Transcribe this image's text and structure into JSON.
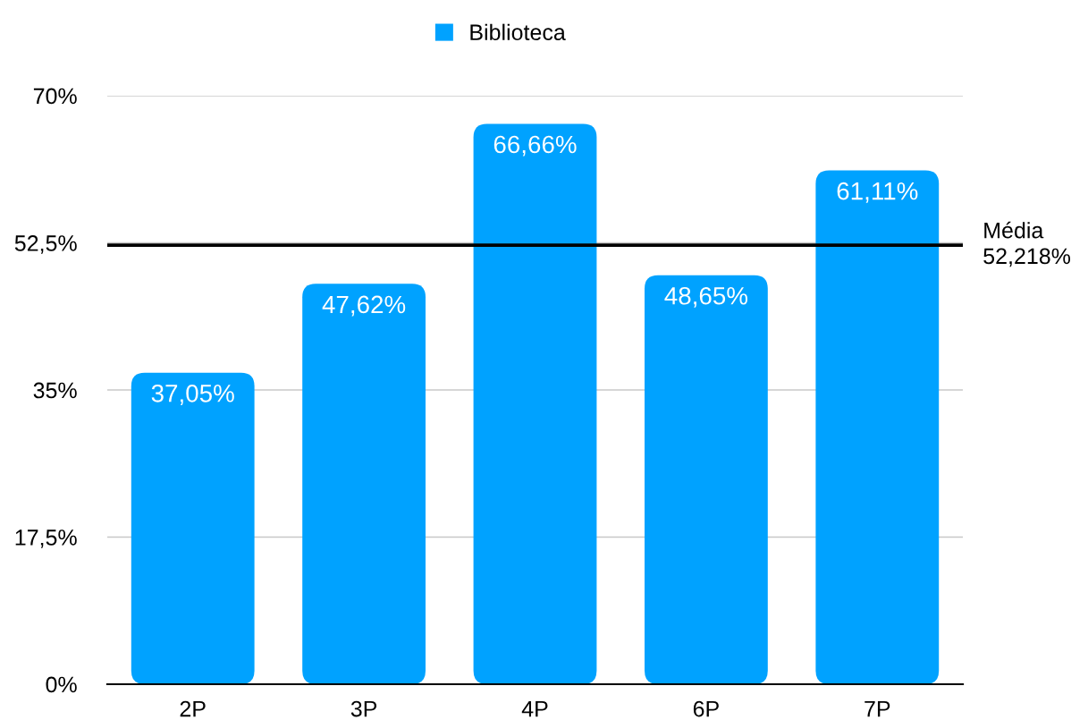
{
  "chart_data": {
    "type": "bar",
    "categories": [
      "2P",
      "3P",
      "4P",
      "6P",
      "7P"
    ],
    "series": [
      {
        "name": "Biblioteca",
        "color": "#00a2ff",
        "values": [
          37.05,
          47.62,
          66.66,
          48.65,
          61.11
        ],
        "value_labels": [
          "37,05%",
          "47,62%",
          "66,66%",
          "48,65%",
          "61,11%"
        ]
      }
    ],
    "ylim": [
      0,
      70
    ],
    "yticks": [
      {
        "value": 0,
        "label": "0%"
      },
      {
        "value": 17.5,
        "label": "17,5%"
      },
      {
        "value": 35,
        "label": "35%"
      },
      {
        "value": 52.5,
        "label": "52,5%"
      },
      {
        "value": 70,
        "label": "70%"
      }
    ],
    "grid": "y",
    "legend": "top",
    "ref_lines": [
      {
        "axis": "y",
        "value": 52.218,
        "label": "Média\n52,218%",
        "color": "#000000"
      }
    ]
  }
}
